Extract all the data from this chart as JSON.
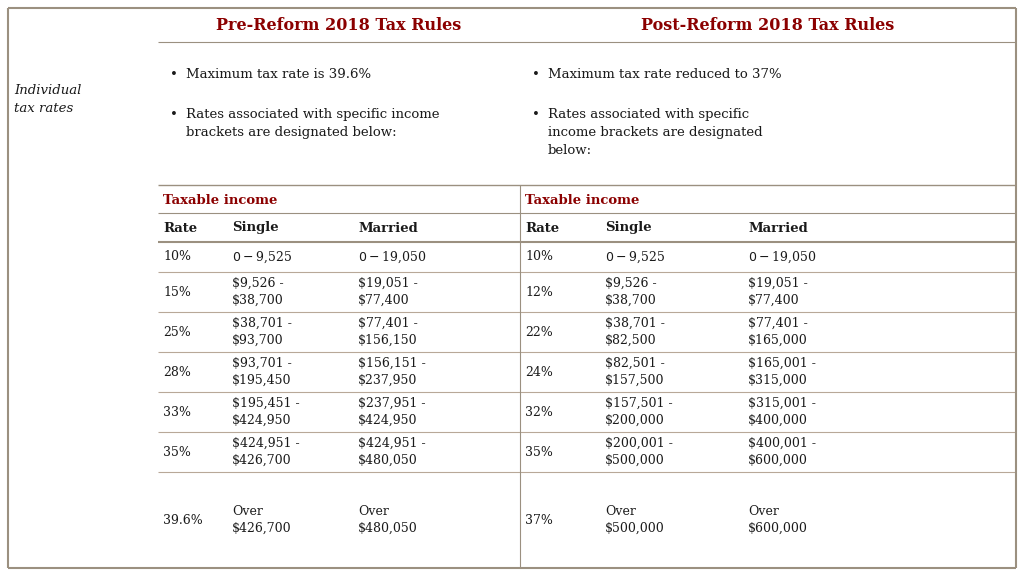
{
  "title_pre": "Pre-Reform 2018 Tax Rules",
  "title_post": "Post-Reform 2018 Tax Rules",
  "row_label": "Individual\ntax rates",
  "bullet_pre_1": "Maximum tax rate is 39.6%",
  "bullet_pre_2": "Rates associated with specific income\nbrackets are designated below:",
  "bullet_post_1": "Maximum tax rate reduced to 37%",
  "bullet_post_2": "Rates associated with specific\nincome brackets are designated\nbelow:",
  "taxable_income_label": "Taxable income",
  "col_headers": [
    "Rate",
    "Single",
    "Married",
    "Rate",
    "Single",
    "Married"
  ],
  "pre_rows": [
    [
      "10%",
      "$0-$9,525",
      "$0-$19,050"
    ],
    [
      "15%",
      "$9,526 -\n$38,700",
      "$19,051 -\n$77,400"
    ],
    [
      "25%",
      "$38,701 -\n$93,700",
      "$77,401 -\n$156,150"
    ],
    [
      "28%",
      "$93,701 -\n$195,450",
      "$156,151 -\n$237,950"
    ],
    [
      "33%",
      "$195,451 -\n$424,950",
      "$237,951 -\n$424,950"
    ],
    [
      "35%",
      "$424,951 -\n$426,700",
      "$424,951 -\n$480,050"
    ],
    [
      "39.6%",
      "Over\n$426,700",
      "Over\n$480,050"
    ]
  ],
  "post_rows": [
    [
      "10%",
      "$0-$9,525",
      "$0-$19,050"
    ],
    [
      "12%",
      "$9,526 -\n$38,700",
      "$19,051 -\n$77,400"
    ],
    [
      "22%",
      "$38,701 -\n$82,500",
      "$77,401 -\n$165,000"
    ],
    [
      "24%",
      "$82,501 -\n$157,500",
      "$165,001 -\n$315,000"
    ],
    [
      "32%",
      "$157,501 -\n$200,000",
      "$315,001 -\n$400,000"
    ],
    [
      "35%",
      "$200,001 -\n$500,000",
      "$400,001 -\n$600,000"
    ],
    [
      "37%",
      "Over\n$500,000",
      "Over\n$600,000"
    ]
  ],
  "crimson": "#8B0000",
  "black": "#1a1a1a",
  "bg_color": "#FFFFFF",
  "line_color_heavy": "#9b9080",
  "line_color_light": "#b8a898"
}
